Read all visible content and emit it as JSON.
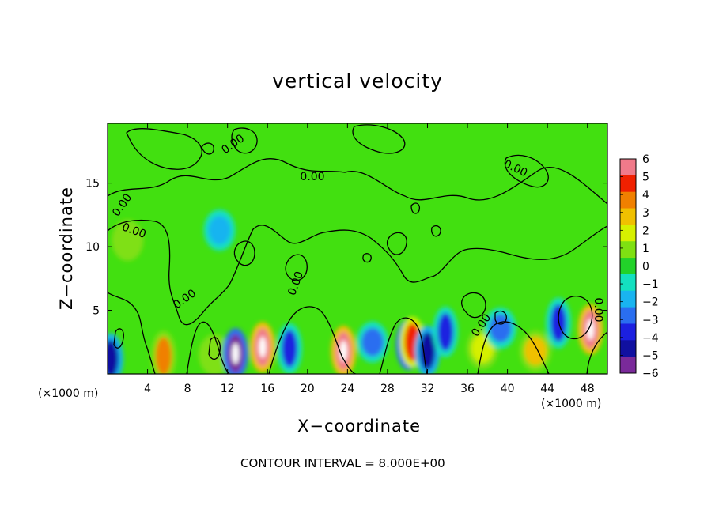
{
  "chart_data": {
    "type": "heatmap",
    "title": "vertical velocity",
    "xlabel": "X−coordinate",
    "ylabel": "Z−coordinate",
    "x_unit_label_left": "(×1000 m)",
    "x_unit_label_right": "(×1000 m)",
    "footer": "CONTOUR INTERVAL = 8.000E+00",
    "xlim": [
      0,
      50
    ],
    "ylim": [
      0,
      19.7
    ],
    "x_ticks": [
      "4",
      "8",
      "12",
      "16",
      "20",
      "24",
      "28",
      "32",
      "36",
      "40",
      "44",
      "48"
    ],
    "y_ticks": [
      "5",
      "10",
      "15"
    ],
    "colorbar": {
      "ticks": [
        "6",
        "5",
        "4",
        "3",
        "2",
        "1",
        "0",
        "−1",
        "−2",
        "−3",
        "−4",
        "−5",
        "−6"
      ],
      "range": [
        -6,
        6
      ]
    },
    "contour_label": "0.00",
    "features": [
      {
        "x": 0.3,
        "z": 1.2,
        "w": -5
      },
      {
        "x": 5.6,
        "z": 1.4,
        "w": 4
      },
      {
        "x": 10.7,
        "z": 1.5,
        "w": 1.5
      },
      {
        "x": 12.8,
        "z": 1.6,
        "w": -6
      },
      {
        "x": 15.5,
        "z": 2.1,
        "w": 6
      },
      {
        "x": 18.2,
        "z": 2.0,
        "w": -4
      },
      {
        "x": 23.6,
        "z": 1.8,
        "w": 6
      },
      {
        "x": 26.5,
        "z": 2.5,
        "w": -3
      },
      {
        "x": 30.1,
        "z": 2.3,
        "w": -6
      },
      {
        "x": 30.5,
        "z": 2.5,
        "w": 5
      },
      {
        "x": 32.0,
        "z": 1.8,
        "w": -5
      },
      {
        "x": 33.8,
        "z": 3.3,
        "w": -4
      },
      {
        "x": 37.5,
        "z": 2.0,
        "w": 2
      },
      {
        "x": 39.3,
        "z": 3.6,
        "w": -3
      },
      {
        "x": 42.8,
        "z": 1.8,
        "w": 3
      },
      {
        "x": 45.1,
        "z": 4.0,
        "w": -4
      },
      {
        "x": 48.3,
        "z": 3.5,
        "w": 6
      },
      {
        "x": 2.0,
        "z": 10.5,
        "w": 1
      },
      {
        "x": 11.2,
        "z": 11.3,
        "w": -2
      }
    ]
  }
}
